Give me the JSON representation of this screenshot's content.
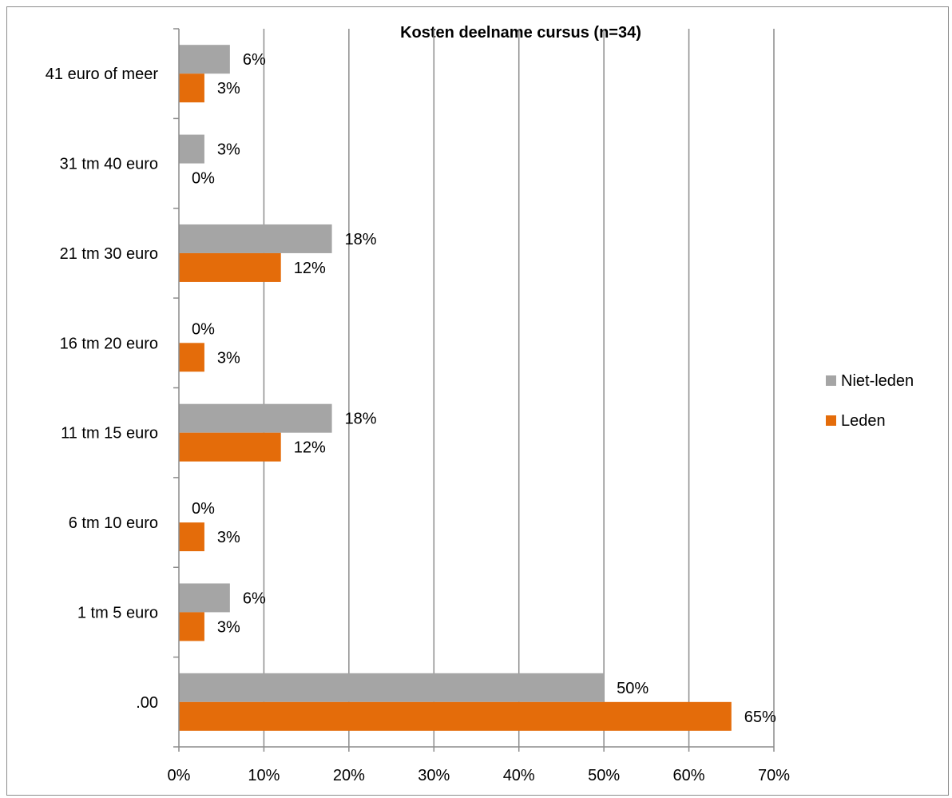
{
  "chart_data": {
    "type": "bar",
    "orientation": "horizontal",
    "title": "Kosten deelname cursus (n=34)",
    "categories": [
      ".00",
      "1 tm 5 euro",
      "6 tm 10 euro",
      "11 tm 15 euro",
      "16 tm 20 euro",
      "21 tm 30 euro",
      "31 tm 40 euro",
      "41 euro of meer"
    ],
    "series": [
      {
        "name": "Niet-leden",
        "color": "#a5a5a5",
        "values": [
          50,
          6,
          0,
          18,
          0,
          18,
          3,
          6
        ],
        "labels": [
          "50%",
          "6%",
          "0%",
          "18%",
          "0%",
          "18%",
          "3%",
          "6%"
        ]
      },
      {
        "name": "Leden",
        "color": "#e46c0a",
        "values": [
          65,
          3,
          3,
          12,
          3,
          12,
          0,
          3
        ],
        "labels": [
          "65%",
          "3%",
          "3%",
          "12%",
          "3%",
          "12%",
          "0%",
          "3%"
        ]
      }
    ],
    "xlim": [
      0,
      70
    ],
    "xticks": [
      "0%",
      "10%",
      "20%",
      "30%",
      "40%",
      "50%",
      "60%",
      "70%"
    ],
    "xlabel": "",
    "ylabel": "",
    "grid": "vertical",
    "legend": "right"
  }
}
